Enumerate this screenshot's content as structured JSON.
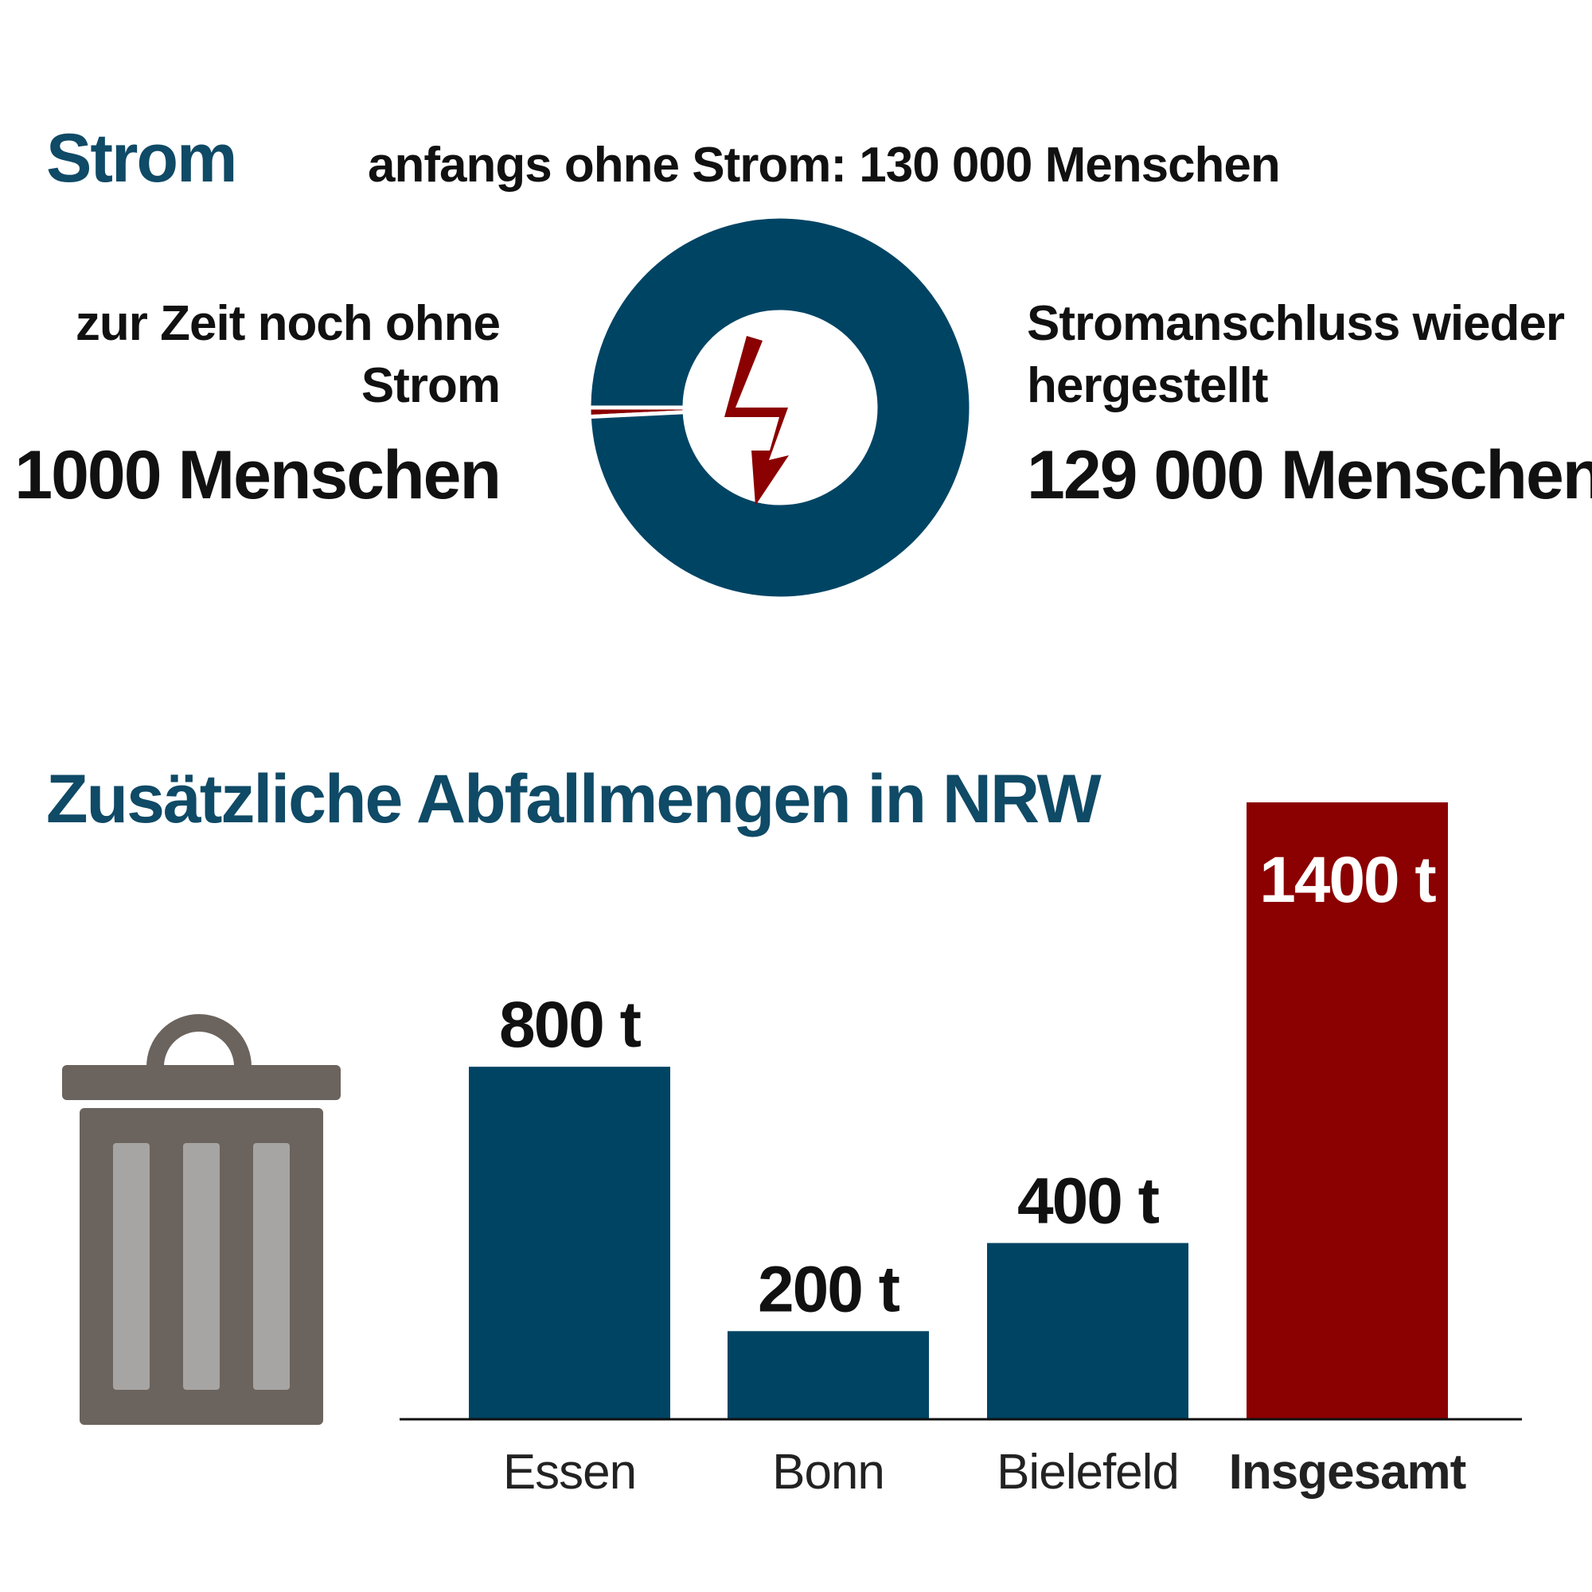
{
  "strom": {
    "title": "Strom",
    "subtitle": "anfangs ohne Strom: 130 000 Menschen",
    "left_label": "zur Zeit noch ohne Strom",
    "left_value": "1000 Menschen",
    "right_label": "Stromanschluss wieder hergestellt",
    "right_value": "129 000 Menschen",
    "icon": "lightning-bolt-icon"
  },
  "abfall": {
    "title": "Zusätzliche Abfallmengen in NRW",
    "icon": "trash-can-icon"
  },
  "colors": {
    "heading": "#0f4a66",
    "primary": "#004464",
    "accent": "#8b0000",
    "trash": "#6b635d",
    "trash_slot": "#a7a5a3"
  },
  "chart_data": [
    {
      "type": "pie",
      "title": "anfangs ohne Strom: 130 000 Menschen",
      "categories": [
        "zur Zeit noch ohne Strom",
        "Stromanschluss wieder hergestellt"
      ],
      "values": [
        1000,
        129000
      ]
    },
    {
      "type": "bar",
      "title": "Zusätzliche Abfallmengen in NRW",
      "categories": [
        "Essen",
        "Bonn",
        "Bielefeld",
        "Insgesamt"
      ],
      "values": [
        800,
        200,
        400,
        1400
      ],
      "value_labels": [
        "800 t",
        "200 t",
        "400 t",
        "1400 t"
      ],
      "unit": "t",
      "highlight": "Insgesamt"
    }
  ]
}
